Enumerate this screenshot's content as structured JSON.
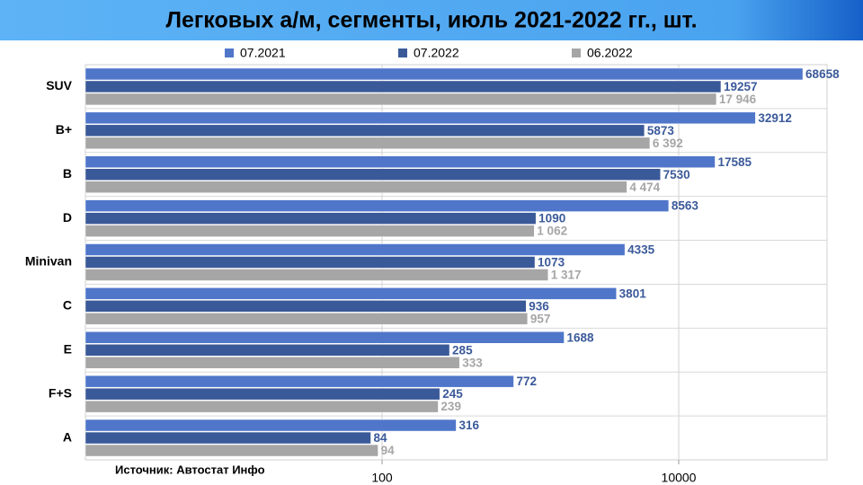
{
  "chart_data": {
    "type": "bar",
    "orientation": "horizontal",
    "title": "Легковых а/м, сегменты, июль 2021-2022 гг., шт.",
    "source": "Источник: Автостат Инфо",
    "categories": [
      "SUV",
      "B+",
      "B",
      "D",
      "Minivan",
      "C",
      "E",
      "F+S",
      "A"
    ],
    "series": [
      {
        "name": "07.2021",
        "color": "#4f76c9",
        "label_color": "#3b5a9a",
        "values": [
          68658,
          32912,
          17585,
          8563,
          4335,
          3801,
          1688,
          772,
          316
        ]
      },
      {
        "name": "07.2022",
        "color": "#3a5998",
        "label_color": "#3b5a9a",
        "values": [
          19257,
          5873,
          7530,
          1090,
          1073,
          936,
          285,
          245,
          84
        ]
      },
      {
        "name": "06.2022",
        "color": "#a6a6a6",
        "label_color": "#a6a6a6",
        "values": [
          17946,
          6392,
          4474,
          1062,
          1317,
          957,
          333,
          239,
          94
        ],
        "value_labels": [
          "17 946",
          "6 392",
          "4 474",
          "1 062",
          "1 317",
          "957",
          "333",
          "239",
          "94"
        ]
      }
    ],
    "xscale": "log",
    "xlim": [
      1,
      100000
    ],
    "xticks": [
      100,
      10000
    ],
    "grid": true
  }
}
